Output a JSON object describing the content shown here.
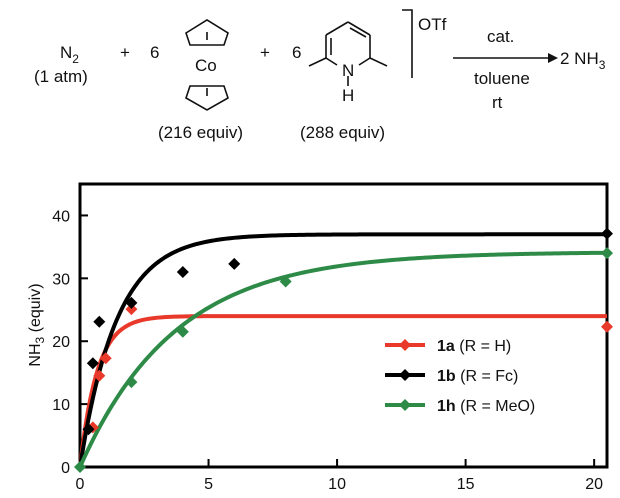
{
  "reaction": {
    "reactant1": "N",
    "reactant1_sub": "2",
    "reactant1_note": "(1 atm)",
    "plus1": "+",
    "coeff1": "6",
    "metal_label": "Co",
    "reagent1_equiv": "(216 equiv)",
    "plus2": "+",
    "coeff2": "6",
    "nh_label": "N",
    "h_label": "H",
    "counterion": "OTf",
    "reagent2_equiv": "(288 equiv)",
    "catalyst": "cat.",
    "solvent": "toluene",
    "temperature": "rt",
    "product_coeff": "2 NH",
    "product_sub": "3"
  },
  "colors": {
    "red": "#e8392a",
    "black": "#000000",
    "green": "#2e8b47"
  },
  "chart_data": {
    "type": "scatter",
    "ylabel_main": "NH",
    "ylabel_sub": "3",
    "ylabel_rest": " (equiv)",
    "xlim": [
      0,
      20.5
    ],
    "ylim": [
      0,
      45
    ],
    "xticks": [
      "0",
      "5",
      "10",
      "15",
      "20"
    ],
    "yticks": [
      "0",
      "10",
      "20",
      "30",
      "40"
    ],
    "legend_position": "right",
    "series": [
      {
        "name_bold": "1a",
        "name_rest": " (R = H)",
        "color": "#e8392a",
        "points": [
          [
            0.5,
            6.3
          ],
          [
            0.75,
            14.5
          ],
          [
            1.0,
            17.3
          ],
          [
            2.0,
            25.1
          ],
          [
            20.5,
            22.3
          ]
        ],
        "fit": {
          "ymax": 24.0,
          "k": 1.5
        }
      },
      {
        "name_bold": "1b",
        "name_rest": " (R = Fc)",
        "color": "#000000",
        "points": [
          [
            0.33,
            6.0
          ],
          [
            0.5,
            16.5
          ],
          [
            0.75,
            23.1
          ],
          [
            2.0,
            26.1
          ],
          [
            4.0,
            31.0
          ],
          [
            6.0,
            32.3
          ],
          [
            20.5,
            37.1
          ]
        ],
        "fit": {
          "ymax": 37.0,
          "k": 0.7
        }
      },
      {
        "name_bold": "1h",
        "name_rest": " (R = MeO)",
        "color": "#2e8b47",
        "points": [
          [
            0.0,
            0.0
          ],
          [
            2.0,
            13.5
          ],
          [
            4.0,
            21.5
          ],
          [
            8.0,
            29.5
          ],
          [
            20.5,
            34.0
          ]
        ],
        "fit": {
          "ymax": 34.2,
          "k": 0.27
        }
      }
    ]
  }
}
